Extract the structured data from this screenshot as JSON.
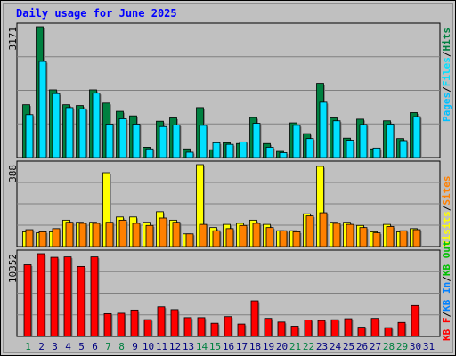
{
  "chart_data": {
    "type": "bar",
    "title": "Daily usage for June 2025",
    "categories": [
      "1",
      "2",
      "3",
      "4",
      "5",
      "6",
      "7",
      "8",
      "9",
      "10",
      "11",
      "12",
      "13",
      "14",
      "15",
      "16",
      "17",
      "18",
      "19",
      "20",
      "21",
      "22",
      "23",
      "24",
      "25",
      "26",
      "27",
      "28",
      "29",
      "30",
      "31"
    ],
    "weekend_days": [
      "1",
      "7",
      "8",
      "14",
      "15",
      "21",
      "22",
      "28",
      "29"
    ],
    "colors": {
      "background": "#c0c0c0",
      "title": "#0000ff",
      "hits": "#008040",
      "files": "#00e0ff",
      "pages": "#00c0ff",
      "sites": "#ff8000",
      "visits": "#ffff00",
      "kb": "#ff0000",
      "kb_in": "#0080ff",
      "kb_out": "#00c000",
      "weekend_label": "#008040",
      "weekday_label": "#000080"
    },
    "panels": [
      {
        "max_label": "3171",
        "ylim": [
          0,
          3171
        ],
        "legend": [
          "Pages",
          "Files",
          "Hits"
        ],
        "series": [
          {
            "name": "Hits",
            "values": [
              1280,
              3171,
              1640,
              1280,
              1260,
              1640,
              1320,
              1120,
              1010,
              250,
              880,
              960,
              210,
              1210,
              190,
              360,
              340,
              970,
              340,
              150,
              840,
              580,
              1800,
              960,
              470,
              930,
              210,
              890,
              460,
              1090,
              0
            ]
          },
          {
            "name": "Files",
            "values": [
              1040,
              2330,
              1550,
              1210,
              1180,
              1560,
              810,
              940,
              810,
              210,
              750,
              790,
              130,
              780,
              360,
              320,
              380,
              830,
              250,
              120,
              780,
              460,
              1340,
              890,
              420,
              800,
              230,
              810,
              410,
              990,
              0
            ]
          },
          {
            "name": "Pages",
            "values": [
              0,
              0,
              0,
              0,
              0,
              0,
              0,
              0,
              0,
              0,
              0,
              0,
              0,
              0,
              0,
              0,
              0,
              0,
              0,
              0,
              0,
              0,
              0,
              0,
              0,
              0,
              0,
              0,
              0,
              0,
              0
            ]
          }
        ]
      },
      {
        "max_label": "388",
        "ylim": [
          0,
          388
        ],
        "legend": [
          "Visits",
          "Sites"
        ],
        "series": [
          {
            "name": "Visits",
            "values": [
              70,
              65,
              70,
              125,
              115,
              115,
              350,
              140,
              140,
              115,
              165,
              125,
              60,
              388,
              90,
              105,
              110,
              125,
              105,
              75,
              75,
              155,
              380,
              115,
              115,
              100,
              70,
              105,
              70,
              85,
              0
            ]
          },
          {
            "name": "Sites",
            "values": [
              80,
              70,
              85,
              115,
              110,
              110,
              115,
              125,
              110,
              100,
              135,
              115,
              60,
              105,
              75,
              85,
              100,
              110,
              90,
              75,
              70,
              145,
              160,
              110,
              105,
              90,
              65,
              95,
              75,
              80,
              0
            ]
          }
        ]
      },
      {
        "max_label": "10352",
        "ylim": [
          0,
          10352
        ],
        "legend": [
          "KB F",
          "KB In",
          "KB Out"
        ],
        "series": [
          {
            "name": "KB F",
            "values": [
              8960,
              10352,
              9900,
              9950,
              8750,
              9950,
              2850,
              2900,
              3300,
              2100,
              3700,
              3350,
              2350,
              2350,
              1650,
              2480,
              1550,
              4450,
              2260,
              1800,
              1280,
              2050,
              1990,
              2090,
              2220,
              1160,
              2260,
              1100,
              1750,
              3860,
              0
            ]
          }
        ]
      }
    ]
  }
}
